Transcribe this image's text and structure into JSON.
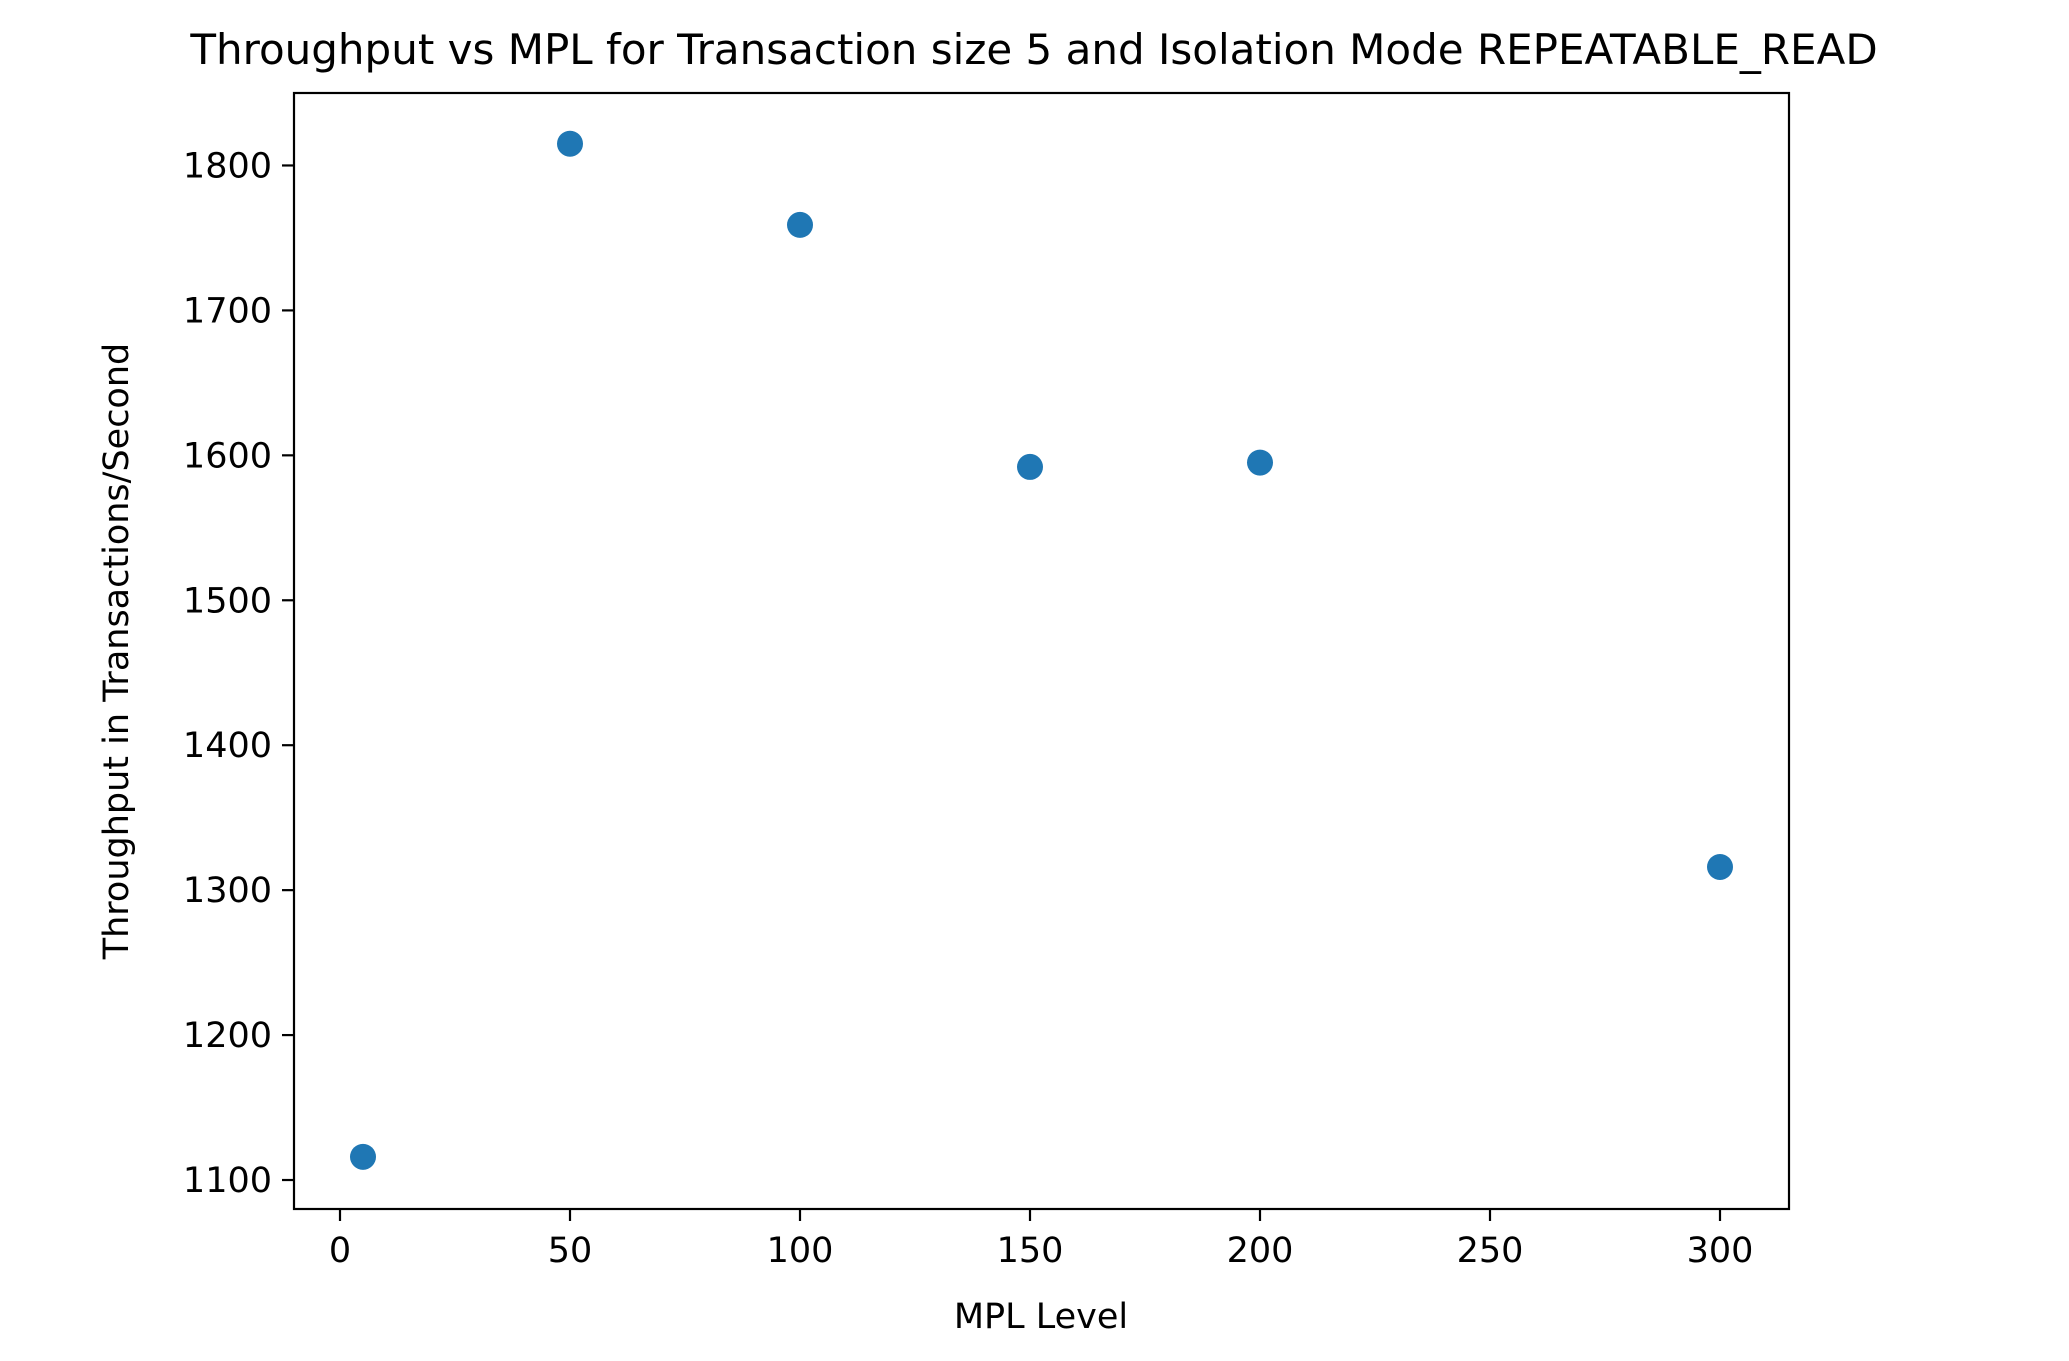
{
  "chart_data": {
    "type": "scatter",
    "title": "Throughput vs MPL for Transaction size 5 and Isolation Mode REPEATABLE_READ",
    "xlabel": "MPL Level",
    "ylabel": "Throughput in Transactions/Second",
    "xlim": [
      -10,
      315
    ],
    "ylim": [
      1080,
      1850
    ],
    "xticks": [
      0,
      50,
      100,
      150,
      200,
      250,
      300
    ],
    "yticks": [
      1100,
      1200,
      1300,
      1400,
      1500,
      1600,
      1700,
      1800
    ],
    "grid": false,
    "marker_color": "#1f77b4",
    "series": [
      {
        "name": "Throughput",
        "x": [
          5,
          50,
          100,
          150,
          200,
          300
        ],
        "y": [
          1116,
          1815,
          1759,
          1592,
          1595,
          1316
        ]
      }
    ]
  }
}
